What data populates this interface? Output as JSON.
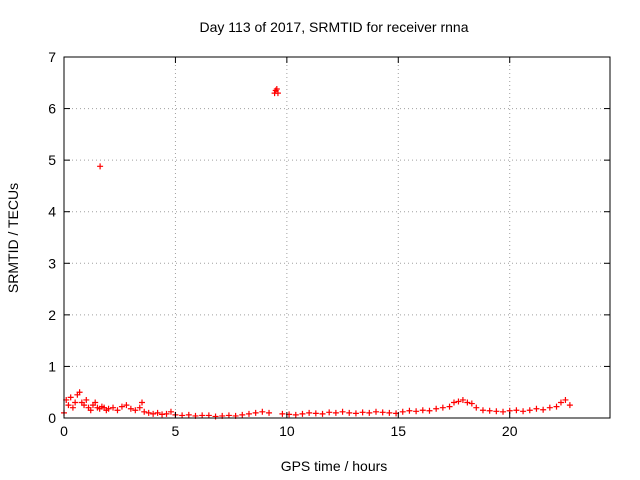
{
  "chart_data": {
    "type": "scatter",
    "title": "Day 113 of 2017, SRMTID for receiver rnna",
    "xlabel": "GPS time / hours",
    "ylabel": "SRMTID / TECUs",
    "xlim": [
      0,
      24.5
    ],
    "ylim": [
      0,
      7
    ],
    "xticks": [
      0,
      5,
      10,
      15,
      20
    ],
    "yticks": [
      0,
      1,
      2,
      3,
      4,
      5,
      6,
      7
    ],
    "grid": true,
    "marker": "+",
    "color": "#ff0000",
    "series": [
      {
        "name": "SRMTID",
        "x": [
          0.0,
          0.1,
          0.2,
          0.3,
          0.4,
          0.5,
          0.6,
          0.7,
          0.8,
          0.9,
          1.0,
          1.1,
          1.2,
          1.3,
          1.4,
          1.5,
          1.6,
          1.62,
          1.7,
          1.8,
          1.9,
          2.0,
          2.2,
          2.4,
          2.6,
          2.8,
          3.0,
          3.2,
          3.4,
          3.5,
          3.6,
          3.8,
          4.0,
          4.2,
          4.4,
          4.6,
          4.8,
          5.0,
          5.3,
          5.6,
          5.9,
          6.2,
          6.5,
          6.8,
          7.1,
          7.4,
          7.7,
          8.0,
          8.3,
          8.6,
          8.9,
          9.2,
          9.45,
          9.5,
          9.55,
          9.6,
          9.8,
          10.1,
          10.4,
          10.7,
          11.0,
          11.3,
          11.6,
          11.9,
          12.2,
          12.5,
          12.8,
          13.1,
          13.4,
          13.7,
          14.0,
          14.3,
          14.6,
          14.9,
          15.2,
          15.5,
          15.8,
          16.1,
          16.4,
          16.7,
          17.0,
          17.3,
          17.5,
          17.7,
          17.9,
          18.1,
          18.3,
          18.5,
          18.8,
          19.1,
          19.4,
          19.7,
          20.0,
          20.3,
          20.6,
          20.9,
          21.2,
          21.5,
          21.8,
          22.1,
          22.3,
          22.5,
          22.7
        ],
        "y": [
          0.1,
          0.35,
          0.25,
          0.4,
          0.2,
          0.3,
          0.45,
          0.5,
          0.3,
          0.25,
          0.35,
          0.2,
          0.15,
          0.25,
          0.3,
          0.2,
          0.18,
          4.88,
          0.22,
          0.2,
          0.15,
          0.18,
          0.2,
          0.15,
          0.22,
          0.25,
          0.18,
          0.15,
          0.2,
          0.3,
          0.12,
          0.1,
          0.08,
          0.1,
          0.07,
          0.08,
          0.12,
          0.06,
          0.05,
          0.06,
          0.04,
          0.05,
          0.05,
          0.03,
          0.04,
          0.05,
          0.04,
          0.06,
          0.08,
          0.1,
          0.12,
          0.1,
          6.3,
          6.35,
          6.38,
          6.3,
          0.08,
          0.07,
          0.06,
          0.08,
          0.1,
          0.09,
          0.08,
          0.11,
          0.1,
          0.12,
          0.1,
          0.09,
          0.11,
          0.1,
          0.12,
          0.11,
          0.1,
          0.09,
          0.12,
          0.14,
          0.13,
          0.15,
          0.14,
          0.18,
          0.2,
          0.22,
          0.3,
          0.32,
          0.35,
          0.3,
          0.28,
          0.2,
          0.15,
          0.14,
          0.13,
          0.12,
          0.14,
          0.15,
          0.13,
          0.15,
          0.18,
          0.16,
          0.2,
          0.22,
          0.3,
          0.35,
          0.25
        ]
      }
    ]
  }
}
